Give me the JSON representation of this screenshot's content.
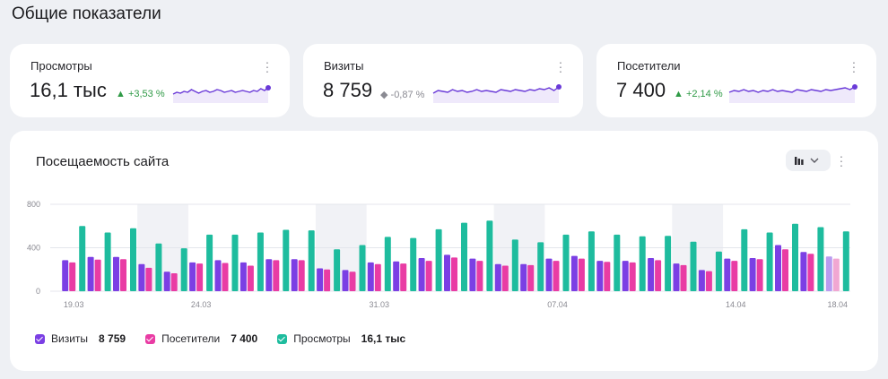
{
  "page": {
    "title": "Общие показатели"
  },
  "kpis": [
    {
      "label": "Просмотры",
      "value": "16,1 тыс",
      "delta": "+3,53 %",
      "trend": "up",
      "spark": [
        18,
        16,
        17,
        15,
        16,
        13,
        15,
        17,
        15,
        14,
        16,
        15,
        13,
        14,
        16,
        15,
        14,
        16,
        15,
        14,
        15,
        16,
        14,
        15,
        12,
        14,
        11
      ]
    },
    {
      "label": "Визиты",
      "value": "8 759",
      "delta": "-0,87 %",
      "trend": "neutral",
      "spark": [
        17,
        14,
        15,
        16,
        13,
        15,
        14,
        16,
        15,
        13,
        15,
        14,
        15,
        16,
        13,
        14,
        15,
        13,
        14,
        15,
        13,
        14,
        12,
        13,
        11,
        14,
        10
      ]
    },
    {
      "label": "Посетители",
      "value": "7 400",
      "delta": "+2,14 %",
      "trend": "up",
      "spark": [
        16,
        14,
        15,
        13,
        15,
        14,
        16,
        14,
        15,
        13,
        15,
        14,
        15,
        16,
        13,
        14,
        15,
        13,
        14,
        15,
        13,
        14,
        13,
        12,
        11,
        13,
        10
      ]
    }
  ],
  "chart_card": {
    "title": "Посещаемость сайта"
  },
  "chart_data": {
    "type": "bar",
    "ylim": [
      0,
      800
    ],
    "y_ticks": [
      "0",
      "400",
      "800"
    ],
    "x_tick_labels": [
      {
        "index": 0,
        "label": "19.03"
      },
      {
        "index": 5,
        "label": "24.03"
      },
      {
        "index": 12,
        "label": "31.03"
      },
      {
        "index": 19,
        "label": "07.04"
      },
      {
        "index": 26,
        "label": "14.04"
      },
      {
        "index": 30,
        "label": "18.04"
      }
    ],
    "weekend_bands": [
      [
        3,
        4
      ],
      [
        10,
        11
      ],
      [
        17,
        18
      ],
      [
        24,
        25
      ]
    ],
    "series": [
      {
        "name": "Визиты",
        "color": "#7b3fe4",
        "values": [
          285,
          315,
          315,
          250,
          180,
          265,
          285,
          265,
          295,
          295,
          210,
          195,
          265,
          275,
          305,
          335,
          300,
          250,
          250,
          300,
          325,
          280,
          280,
          305,
          255,
          195,
          300,
          305,
          425,
          360,
          320
        ]
      },
      {
        "name": "Посетители",
        "color": "#e93ca4",
        "values": [
          265,
          290,
          295,
          215,
          165,
          255,
          260,
          235,
          285,
          285,
          200,
          180,
          250,
          255,
          280,
          310,
          280,
          235,
          240,
          280,
          300,
          270,
          265,
          285,
          240,
          185,
          280,
          295,
          385,
          345,
          300
        ]
      },
      {
        "name": "Просмотры",
        "color": "#1ebc9e",
        "values": [
          600,
          540,
          580,
          440,
          395,
          520,
          520,
          540,
          565,
          560,
          385,
          425,
          500,
          490,
          570,
          630,
          650,
          475,
          450,
          520,
          550,
          520,
          505,
          510,
          455,
          365,
          570,
          540,
          620,
          590,
          550
        ]
      }
    ],
    "last_bar_partial": true
  },
  "legend": [
    {
      "name": "Визиты",
      "value": "8 759",
      "color": "#7b3fe4"
    },
    {
      "name": "Посетители",
      "value": "7 400",
      "color": "#e93ca4"
    },
    {
      "name": "Просмотры",
      "value": "16,1 тыс",
      "color": "#1ebc9e"
    }
  ],
  "icons": {
    "kpi_menu": "more-vertical-icon",
    "chart_type": "bar-chart-icon",
    "dropdown": "chevron-down-icon",
    "trend_up": "triangle-up-icon",
    "trend_neutral": "diamond-icon"
  }
}
